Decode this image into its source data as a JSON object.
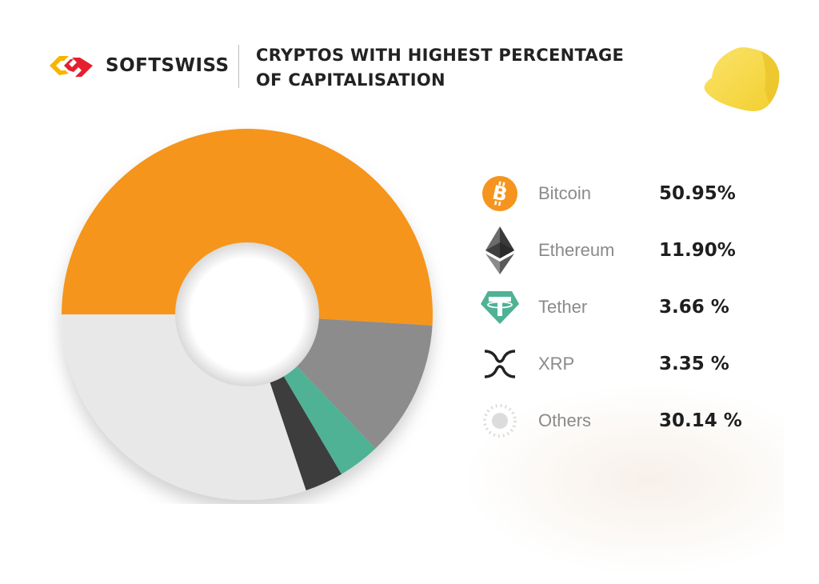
{
  "brand": {
    "name": "SOFTSWISS"
  },
  "header": {
    "title_line1": "CRYPTOS WITH HIGHEST PERCENTAGE",
    "title_line2": "OF CAPITALISATION"
  },
  "legend": [
    {
      "name": "Bitcoin",
      "value": "50.95%",
      "icon": "bitcoin-icon",
      "color": "#f5951f"
    },
    {
      "name": "Ethereum",
      "value": "11.90%",
      "icon": "ethereum-icon",
      "color": "#8c8c8c"
    },
    {
      "name": "Tether",
      "value": "3.66 %",
      "icon": "tether-icon",
      "color": "#4fb295"
    },
    {
      "name": "XRP",
      "value": "3.35 %",
      "icon": "xrp-icon",
      "color": "#3d3d3d"
    },
    {
      "name": "Others",
      "value": "30.14 %",
      "icon": "others-icon",
      "color": "#e8e8e8"
    }
  ],
  "chart_data": {
    "type": "pie",
    "title": "CRYPTOS WITH HIGHEST PERCENTAGE OF CAPITALISATION",
    "categories": [
      "Bitcoin",
      "Ethereum",
      "Tether",
      "XRP",
      "Others"
    ],
    "values": [
      50.95,
      11.9,
      3.66,
      3.35,
      30.14
    ],
    "colors": [
      "#f5951f",
      "#8c8c8c",
      "#4fb295",
      "#3d3d3d",
      "#e8e8e8"
    ],
    "donut": true,
    "legend_position": "right"
  }
}
